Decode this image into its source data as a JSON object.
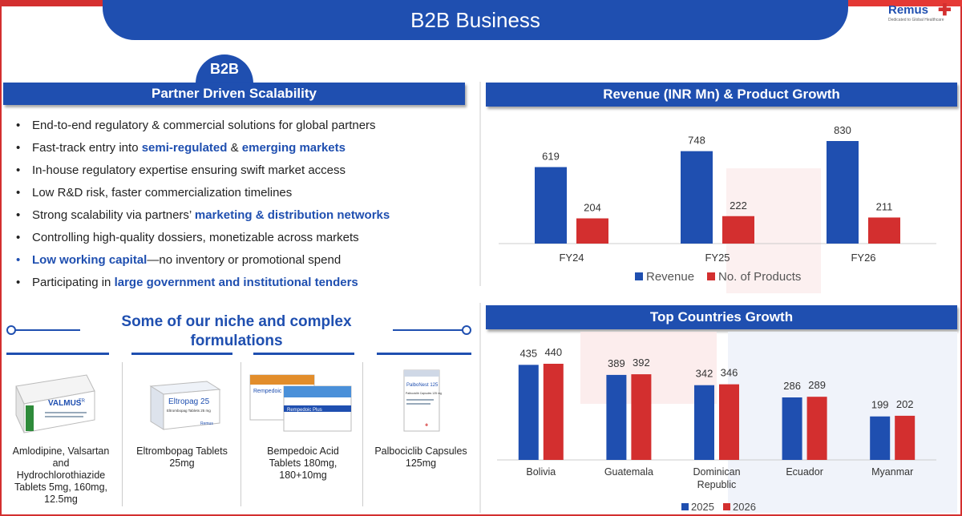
{
  "header": {
    "title": "B2B Business"
  },
  "logo": {
    "name": "Remus",
    "tagline": "Dedicated to Global Healthcare"
  },
  "left": {
    "tab": "B2B",
    "section_title": "Partner Driven Scalability",
    "bullets": [
      {
        "parts": [
          {
            "t": "End-to-end regulatory & commercial solutions for global partners",
            "h": false
          }
        ]
      },
      {
        "parts": [
          {
            "t": "Fast-track entry into ",
            "h": false
          },
          {
            "t": "semi-regulated",
            "h": true
          },
          {
            "t": " & ",
            "h": false
          },
          {
            "t": "emerging markets",
            "h": true
          }
        ]
      },
      {
        "parts": [
          {
            "t": "In-house regulatory expertise ensuring swift market access",
            "h": false
          }
        ]
      },
      {
        "parts": [
          {
            "t": "Low R&D risk, faster commercialization timelines",
            "h": false
          }
        ]
      },
      {
        "parts": [
          {
            "t": "Strong scalability via partners’ ",
            "h": false
          },
          {
            "t": "marketing & distribution networks",
            "h": true
          }
        ]
      },
      {
        "parts": [
          {
            "t": "Controlling high-quality dossiers, monetizable across markets",
            "h": false
          }
        ]
      },
      {
        "parts": [
          {
            "t": "Low working capital",
            "h": true
          },
          {
            "t": "—no inventory or promotional spend",
            "h": false
          }
        ],
        "blue_dot": true
      },
      {
        "parts": [
          {
            "t": "Participating in ",
            "h": false
          },
          {
            "t": "large government and institutional tenders",
            "h": true
          }
        ]
      }
    ],
    "niche_title": "Some of our niche and complex formulations",
    "products": [
      {
        "name": "Amlodipine, Valsartan and Hydrochlorothiazide Tablets 5mg, 160mg, 12.5mg",
        "box_text": "VALMUS",
        "box_sub": "TR"
      },
      {
        "name": "Eltrombopag Tablets 25mg",
        "box_text": "Eltropag 25",
        "box_sub": "Eltrombopag Tablets 25 mg"
      },
      {
        "name": "Bempedoic Acid Tablets 180mg, 180+10mg",
        "box_text": "Rempedoic",
        "box_sub": "Rempedoic Plus"
      },
      {
        "name": "Palbociclib Capsules 125mg",
        "box_text": "PalboNest 125",
        "box_sub": "Palbociclib Capsules 125 mg"
      }
    ]
  },
  "colors": {
    "blue": "#1f4fb0",
    "red": "#d32f2f"
  },
  "chart_data": [
    {
      "type": "bar",
      "title": "Revenue (INR Mn)  & Product Growth",
      "categories": [
        "FY24",
        "FY25",
        "FY26"
      ],
      "series": [
        {
          "name": "Revenue",
          "values": [
            619,
            748,
            830
          ],
          "color": "#1f4fb0"
        },
        {
          "name": "No. of Products",
          "values": [
            204,
            222,
            211
          ],
          "color": "#d32f2f"
        }
      ],
      "legend": "bottom"
    },
    {
      "type": "bar",
      "title": "Top Countries Growth",
      "categories": [
        "Bolivia",
        "Guatemala",
        "Dominican Republic",
        "Ecuador",
        "Myanmar"
      ],
      "series": [
        {
          "name": "2025",
          "values": [
            435,
            389,
            342,
            286,
            199
          ],
          "color": "#1f4fb0"
        },
        {
          "name": "2026",
          "values": [
            440,
            392,
            346,
            289,
            202
          ],
          "color": "#d32f2f"
        }
      ],
      "legend": "bottom-right"
    }
  ]
}
